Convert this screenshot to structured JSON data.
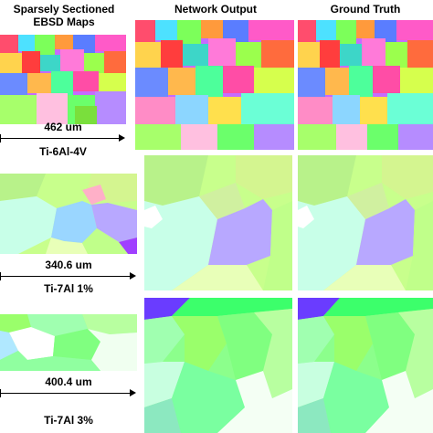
{
  "headers": {
    "input_line1": "Sparsely Sectioned",
    "input_line2": "EBSD Maps",
    "network": "Network Output",
    "truth": "Ground Truth"
  },
  "rows": [
    {
      "scale_label": "462 um",
      "material": "Ti-6Al-4V"
    },
    {
      "scale_label": "340.6 um",
      "material": "Ti-7Al 1%"
    },
    {
      "scale_label": "400.4 um",
      "material": "Ti-7Al 3%"
    }
  ]
}
